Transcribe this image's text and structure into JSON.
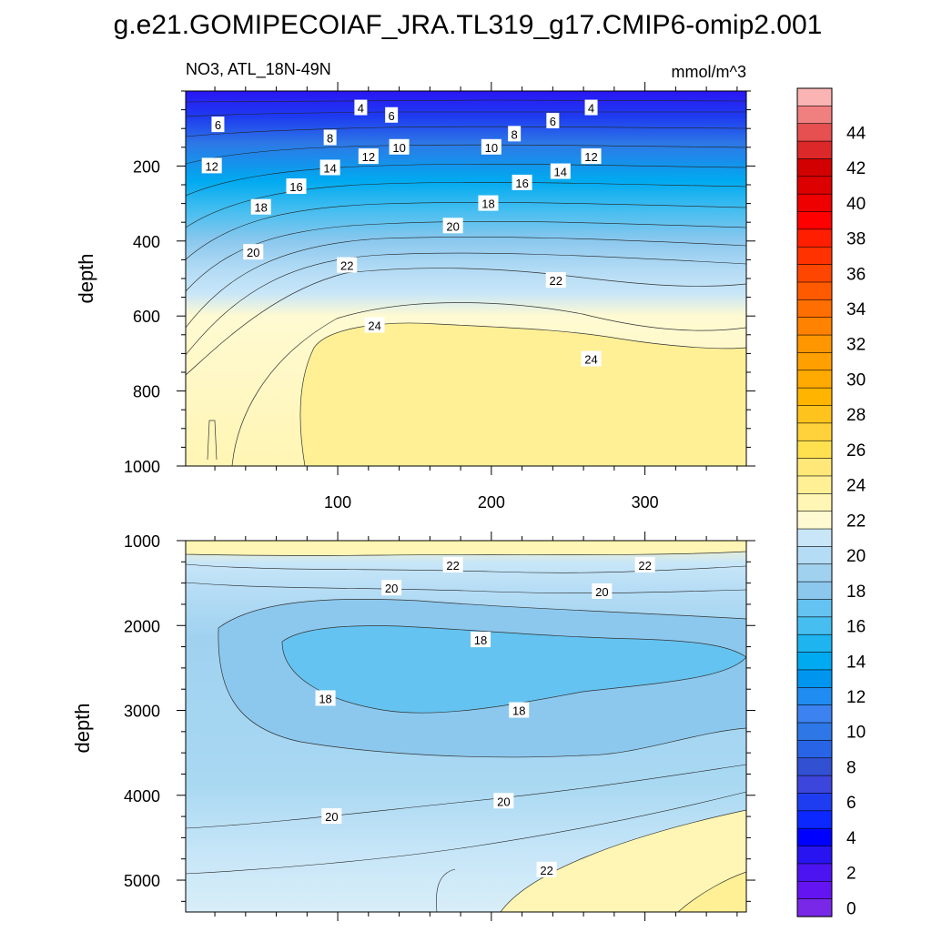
{
  "title": "g.e21.GOMIPECOIAF_JRA.TL319_g17.CMIP6-omip2.001",
  "chart_data": [
    {
      "type": "heatmap",
      "panel": "upper",
      "variable_label": "NO3, ATL_18N-49N",
      "units_label": "mmol/m^3",
      "xlabel": "",
      "ylabel": "depth",
      "xlim": [
        1,
        366
      ],
      "ylim": [
        0,
        1000
      ],
      "y_inverted": true,
      "x_ticks": [
        "100",
        "200",
        "300"
      ],
      "y_ticks": [
        "200",
        "400",
        "600",
        "800",
        "1000"
      ],
      "contour_levels": [
        4,
        6,
        8,
        10,
        12,
        14,
        16,
        18,
        20,
        22,
        24
      ],
      "contour_labels": [
        {
          "text": "4",
          "x": 115,
          "y": 45
        },
        {
          "text": "6",
          "x": 135,
          "y": 65
        },
        {
          "text": "4",
          "x": 265,
          "y": 45
        },
        {
          "text": "6",
          "x": 240,
          "y": 80
        },
        {
          "text": "6",
          "x": 22,
          "y": 90
        },
        {
          "text": "8",
          "x": 95,
          "y": 125
        },
        {
          "text": "8",
          "x": 215,
          "y": 115
        },
        {
          "text": "10",
          "x": 140,
          "y": 150
        },
        {
          "text": "10",
          "x": 200,
          "y": 150
        },
        {
          "text": "12",
          "x": 120,
          "y": 175
        },
        {
          "text": "12",
          "x": 265,
          "y": 175
        },
        {
          "text": "12",
          "x": 18,
          "y": 200
        },
        {
          "text": "14",
          "x": 95,
          "y": 205
        },
        {
          "text": "14",
          "x": 245,
          "y": 215
        },
        {
          "text": "16",
          "x": 73,
          "y": 255
        },
        {
          "text": "16",
          "x": 220,
          "y": 245
        },
        {
          "text": "18",
          "x": 50,
          "y": 310
        },
        {
          "text": "18",
          "x": 198,
          "y": 300
        },
        {
          "text": "20",
          "x": 45,
          "y": 430
        },
        {
          "text": "20",
          "x": 175,
          "y": 360
        },
        {
          "text": "22",
          "x": 106,
          "y": 465
        },
        {
          "text": "22",
          "x": 242,
          "y": 505
        },
        {
          "text": "24",
          "x": 124,
          "y": 625
        },
        {
          "text": "24",
          "x": 265,
          "y": 715
        }
      ]
    },
    {
      "type": "heatmap",
      "panel": "lower",
      "xlabel": "",
      "ylabel": "depth",
      "xlim": [
        1,
        366
      ],
      "ylim": [
        1000,
        5375
      ],
      "y_inverted": true,
      "x_ticks": [],
      "y_ticks": [
        "1000",
        "2000",
        "3000",
        "4000",
        "5000"
      ],
      "contour_levels": [
        18,
        20,
        22
      ],
      "contour_labels": [
        {
          "text": "22",
          "x": 175,
          "y": 1290
        },
        {
          "text": "22",
          "x": 300,
          "y": 1290
        },
        {
          "text": "20",
          "x": 135,
          "y": 1560
        },
        {
          "text": "20",
          "x": 272,
          "y": 1600
        },
        {
          "text": "18",
          "x": 193,
          "y": 2170
        },
        {
          "text": "18",
          "x": 92,
          "y": 2860
        },
        {
          "text": "18",
          "x": 218,
          "y": 3000
        },
        {
          "text": "20",
          "x": 208,
          "y": 4070
        },
        {
          "text": "20",
          "x": 96,
          "y": 4250
        },
        {
          "text": "22",
          "x": 236,
          "y": 4880
        }
      ]
    }
  ],
  "colorbar": {
    "labels": [
      "44",
      "42",
      "40",
      "38",
      "36",
      "34",
      "32",
      "30",
      "28",
      "26",
      "24",
      "22",
      "20",
      "18",
      "16",
      "14",
      "12",
      "10",
      "8",
      "6",
      "4",
      "2",
      "0"
    ],
    "bins": [
      {
        "value": 46,
        "color": "#fab4b4"
      },
      {
        "value": 45,
        "color": "#f08080"
      },
      {
        "value": 44,
        "color": "#e65050"
      },
      {
        "value": 43,
        "color": "#dc2828"
      },
      {
        "value": 42,
        "color": "#d20000"
      },
      {
        "value": 41,
        "color": "#dd0000"
      },
      {
        "value": 40,
        "color": "#ee0000"
      },
      {
        "value": 39,
        "color": "#ff0000"
      },
      {
        "value": 38,
        "color": "#ff1e00"
      },
      {
        "value": 37,
        "color": "#ff3200"
      },
      {
        "value": 36,
        "color": "#ff4600"
      },
      {
        "value": 35,
        "color": "#ff5a00"
      },
      {
        "value": 34,
        "color": "#ff6e00"
      },
      {
        "value": 33,
        "color": "#ff8200"
      },
      {
        "value": 32,
        "color": "#ff9600"
      },
      {
        "value": 31,
        "color": "#ffa000"
      },
      {
        "value": 30,
        "color": "#ffaa00"
      },
      {
        "value": 29,
        "color": "#ffb400"
      },
      {
        "value": 28,
        "color": "#ffc31e"
      },
      {
        "value": 27,
        "color": "#ffd23c"
      },
      {
        "value": 26,
        "color": "#ffe150"
      },
      {
        "value": 25,
        "color": "#ffe878"
      },
      {
        "value": 24,
        "color": "#fff096"
      },
      {
        "value": 23,
        "color": "#fff5b4"
      },
      {
        "value": 22,
        "color": "#fffad2"
      },
      {
        "value": 21,
        "color": "#c8e6f8"
      },
      {
        "value": 20,
        "color": "#b4dcf5"
      },
      {
        "value": 19,
        "color": "#a0d2f0"
      },
      {
        "value": 18,
        "color": "#8cc8ee"
      },
      {
        "value": 17,
        "color": "#64c3f0"
      },
      {
        "value": 16,
        "color": "#46bef0"
      },
      {
        "value": 15,
        "color": "#1eb4f0"
      },
      {
        "value": 14,
        "color": "#00aaf0"
      },
      {
        "value": 13,
        "color": "#0096f0"
      },
      {
        "value": 12,
        "color": "#1e8cf0"
      },
      {
        "value": 11,
        "color": "#3c82f0"
      },
      {
        "value": 10,
        "color": "#2d78e6"
      },
      {
        "value": 9,
        "color": "#2864e6"
      },
      {
        "value": 8,
        "color": "#3250d2"
      },
      {
        "value": 7,
        "color": "#3c46dc"
      },
      {
        "value": 6,
        "color": "#1e3cf0"
      },
      {
        "value": 5,
        "color": "#0a28ff"
      },
      {
        "value": 4,
        "color": "#0000ff"
      },
      {
        "value": 3,
        "color": "#2814f0"
      },
      {
        "value": 2,
        "color": "#4b14f0"
      },
      {
        "value": 1,
        "color": "#6414f0"
      },
      {
        "value": 0,
        "color": "#7828e6"
      }
    ]
  }
}
